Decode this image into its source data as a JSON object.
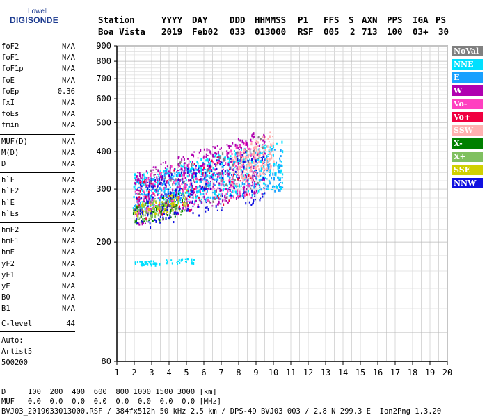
{
  "logo": {
    "top": "Lowell",
    "main": "DIGISONDE"
  },
  "header": {
    "labels": [
      "Station",
      "YYYY",
      "DAY",
      "DDD",
      "HHMMSS",
      "P1",
      "FFS",
      "S",
      "AXN",
      "PPS",
      "IGA",
      "PS"
    ],
    "values": [
      "Boa Vista",
      "2019",
      "Feb02",
      "033",
      "013000",
      "RSF",
      "005",
      "2",
      "713",
      "100",
      "03+",
      "30"
    ]
  },
  "params_group1": [
    {
      "name": "foF2",
      "value": "N/A"
    },
    {
      "name": "foF1",
      "value": "N/A"
    },
    {
      "name": "foF1p",
      "value": "N/A"
    },
    {
      "name": "foE",
      "value": "N/A"
    },
    {
      "name": "foEp",
      "value": "0.36"
    },
    {
      "name": "fxI",
      "value": "N/A"
    },
    {
      "name": "foEs",
      "value": "N/A"
    },
    {
      "name": "fmin",
      "value": "N/A"
    }
  ],
  "params_group2": [
    {
      "name": "MUF(D)",
      "value": "N/A"
    },
    {
      "name": "M(D)",
      "value": "N/A"
    },
    {
      "name": "D",
      "value": "N/A"
    }
  ],
  "params_group3": [
    {
      "name": "h`F",
      "value": "N/A"
    },
    {
      "name": "h`F2",
      "value": "N/A"
    },
    {
      "name": "h`E",
      "value": "N/A"
    },
    {
      "name": "h`Es",
      "value": "N/A"
    }
  ],
  "params_group4": [
    {
      "name": "hmF2",
      "value": "N/A"
    },
    {
      "name": "hmF1",
      "value": "N/A"
    },
    {
      "name": "hmE",
      "value": "N/A"
    },
    {
      "name": "yF2",
      "value": "N/A"
    },
    {
      "name": "yF1",
      "value": "N/A"
    },
    {
      "name": "yE",
      "value": "N/A"
    },
    {
      "name": "B0",
      "value": "N/A"
    },
    {
      "name": "B1",
      "value": "N/A"
    }
  ],
  "clevel": {
    "name": "C-level",
    "value": "44"
  },
  "auto": [
    "Auto:",
    "Artist5",
    "500200"
  ],
  "legend": [
    {
      "label": "NoVal",
      "color": "#808080"
    },
    {
      "label": "NNE",
      "color": "#00e0ff"
    },
    {
      "label": "E",
      "color": "#18a0ff"
    },
    {
      "label": "W",
      "color": "#b000b0"
    },
    {
      "label": "Vo-",
      "color": "#ff40c0"
    },
    {
      "label": "Vo+",
      "color": "#f00040"
    },
    {
      "label": "SSW",
      "color": "#ffb0b0"
    },
    {
      "label": "X-",
      "color": "#008000"
    },
    {
      "label": "X+",
      "color": "#80c060"
    },
    {
      "label": "SSE",
      "color": "#d0d000"
    },
    {
      "label": "NNW",
      "color": "#1010e0"
    }
  ],
  "footer": {
    "d_row": "D     100  200  400  600  800 1000 1500 3000 [km]",
    "muf_row": "MUF   0.0  0.0  0.0  0.0  0.0  0.0  0.0  0.0 [MHz]",
    "info": "BVJ03_2019033013000.RSF / 384fx512h 50 kHz 2.5 km / DPS-4D BVJ03 003 / 2.8 N 299.3 E  Ion2Png 1.3.20"
  },
  "chart_data": {
    "type": "scatter",
    "xlim": [
      1,
      20
    ],
    "ylim": [
      80,
      900
    ],
    "x_ticks": [
      1,
      2,
      3,
      4,
      5,
      6,
      7,
      8,
      9,
      10,
      11,
      12,
      13,
      14,
      15,
      16,
      17,
      18,
      19,
      20
    ],
    "y_ticks": [
      80,
      200,
      300,
      400,
      500,
      600,
      700,
      800,
      900
    ],
    "y_scale": "log",
    "grid": true,
    "clusters": [
      {
        "series": "E",
        "x_range": [
          1.9,
          10.5
        ],
        "y_range": [
          255,
          420
        ],
        "density": "high"
      },
      {
        "series": "NNE",
        "x_range": [
          1.9,
          10.5
        ],
        "y_range": [
          255,
          440
        ],
        "density": "high"
      },
      {
        "series": "W",
        "x_range": [
          2.0,
          9.5
        ],
        "y_range": [
          225,
          480
        ],
        "density": "high"
      },
      {
        "series": "Vo-",
        "x_range": [
          2.0,
          9.0
        ],
        "y_range": [
          240,
          440
        ],
        "density": "medium"
      },
      {
        "series": "Vo+",
        "x_range": [
          2.0,
          9.0
        ],
        "y_range": [
          230,
          420
        ],
        "density": "low"
      },
      {
        "series": "SSW",
        "x_range": [
          7.5,
          10.0
        ],
        "y_range": [
          300,
          480
        ],
        "density": "medium"
      },
      {
        "series": "X-",
        "x_range": [
          1.9,
          5.0
        ],
        "y_range": [
          230,
          300
        ],
        "density": "low"
      },
      {
        "series": "X+",
        "x_range": [
          1.9,
          5.0
        ],
        "y_range": [
          230,
          300
        ],
        "density": "low"
      },
      {
        "series": "SSE",
        "x_range": [
          2.0,
          5.0
        ],
        "y_range": [
          240,
          300
        ],
        "density": "low"
      },
      {
        "series": "NNW",
        "x_range": [
          2.0,
          9.5
        ],
        "y_range": [
          220,
          420
        ],
        "density": "medium"
      },
      {
        "series": "NoVal",
        "x_range": [
          2.0,
          9.5
        ],
        "y_range": [
          230,
          460
        ],
        "density": "low"
      },
      {
        "series": "NNE",
        "x_range": [
          2.0,
          5.5
        ],
        "y_range": [
          168,
          178
        ],
        "density": "low"
      }
    ]
  }
}
